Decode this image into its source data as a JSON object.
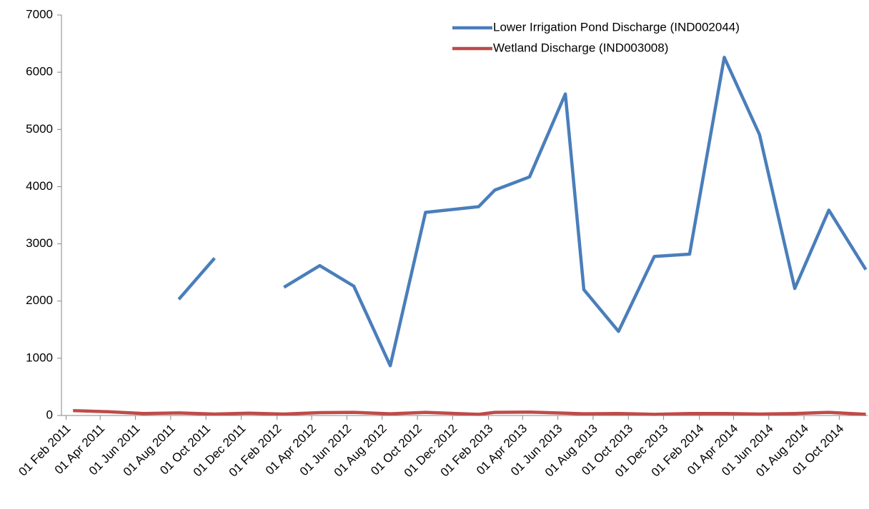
{
  "chart_data": {
    "type": "line",
    "x": [
      "2011-02-13",
      "2011-04-15",
      "2011-06-15",
      "2011-08-15",
      "2011-10-16",
      "2011-12-14",
      "2012-02-13",
      "2012-04-15",
      "2012-06-13",
      "2012-08-15",
      "2012-10-15",
      "2013-01-15",
      "2013-02-12",
      "2013-04-13",
      "2013-06-14",
      "2013-07-16",
      "2013-09-14",
      "2013-11-15",
      "2014-01-15",
      "2014-03-16",
      "2014-05-16",
      "2014-07-16",
      "2014-09-13",
      "2014-11-16"
    ],
    "series": [
      {
        "name": "Lower Irrigation Pond Discharge (IND002044)",
        "color": "#4a7ebb",
        "values": [
          null,
          null,
          null,
          2030,
          2750,
          null,
          2240,
          2620,
          2260,
          870,
          3550,
          3650,
          3940,
          4170,
          5620,
          2200,
          1470,
          2780,
          2820,
          6260,
          4910,
          2220,
          3590,
          2550
        ]
      },
      {
        "name": "Wetland Discharge (IND003008)",
        "color": "#be4b48",
        "values": [
          85,
          65,
          35,
          45,
          25,
          40,
          25,
          50,
          55,
          30,
          55,
          20,
          55,
          60,
          40,
          30,
          35,
          20,
          35,
          35,
          25,
          35,
          55,
          20
        ]
      }
    ],
    "xlim": [
      "2011-01-24",
      "2014-11-19"
    ],
    "xticks": [
      {
        "value": "2011-02-01",
        "label": "01 Feb 2011"
      },
      {
        "value": "2011-04-01",
        "label": "01 Apr 2011"
      },
      {
        "value": "2011-06-01",
        "label": "01 Jun 2011"
      },
      {
        "value": "2011-08-01",
        "label": "01 Aug 2011"
      },
      {
        "value": "2011-10-01",
        "label": "01 Oct 2011"
      },
      {
        "value": "2011-12-01",
        "label": "01 Dec 2011"
      },
      {
        "value": "2012-02-01",
        "label": "01 Feb 2012"
      },
      {
        "value": "2012-04-01",
        "label": "01 Apr 2012"
      },
      {
        "value": "2012-06-01",
        "label": "01 Jun 2012"
      },
      {
        "value": "2012-08-01",
        "label": "01 Aug 2012"
      },
      {
        "value": "2012-10-01",
        "label": "01 Oct 2012"
      },
      {
        "value": "2012-12-01",
        "label": "01 Dec 2012"
      },
      {
        "value": "2013-02-01",
        "label": "01 Feb 2013"
      },
      {
        "value": "2013-04-01",
        "label": "01 Apr 2013"
      },
      {
        "value": "2013-06-01",
        "label": "01 Jun 2013"
      },
      {
        "value": "2013-08-01",
        "label": "01 Aug 2013"
      },
      {
        "value": "2013-10-01",
        "label": "01 Oct 2013"
      },
      {
        "value": "2013-12-01",
        "label": "01 Dec 2013"
      },
      {
        "value": "2014-02-01",
        "label": "01 Feb 2014"
      },
      {
        "value": "2014-04-01",
        "label": "01 Apr 2014"
      },
      {
        "value": "2014-06-01",
        "label": "01 Jun 2014"
      },
      {
        "value": "2014-08-01",
        "label": "01 Aug 2014"
      },
      {
        "value": "2014-10-01",
        "label": "01 Oct 2014"
      }
    ],
    "ylim": [
      0,
      7000
    ],
    "yticks": [
      0,
      1000,
      2000,
      3000,
      4000,
      5000,
      6000,
      7000
    ],
    "grid": false,
    "legend": "top-right"
  }
}
